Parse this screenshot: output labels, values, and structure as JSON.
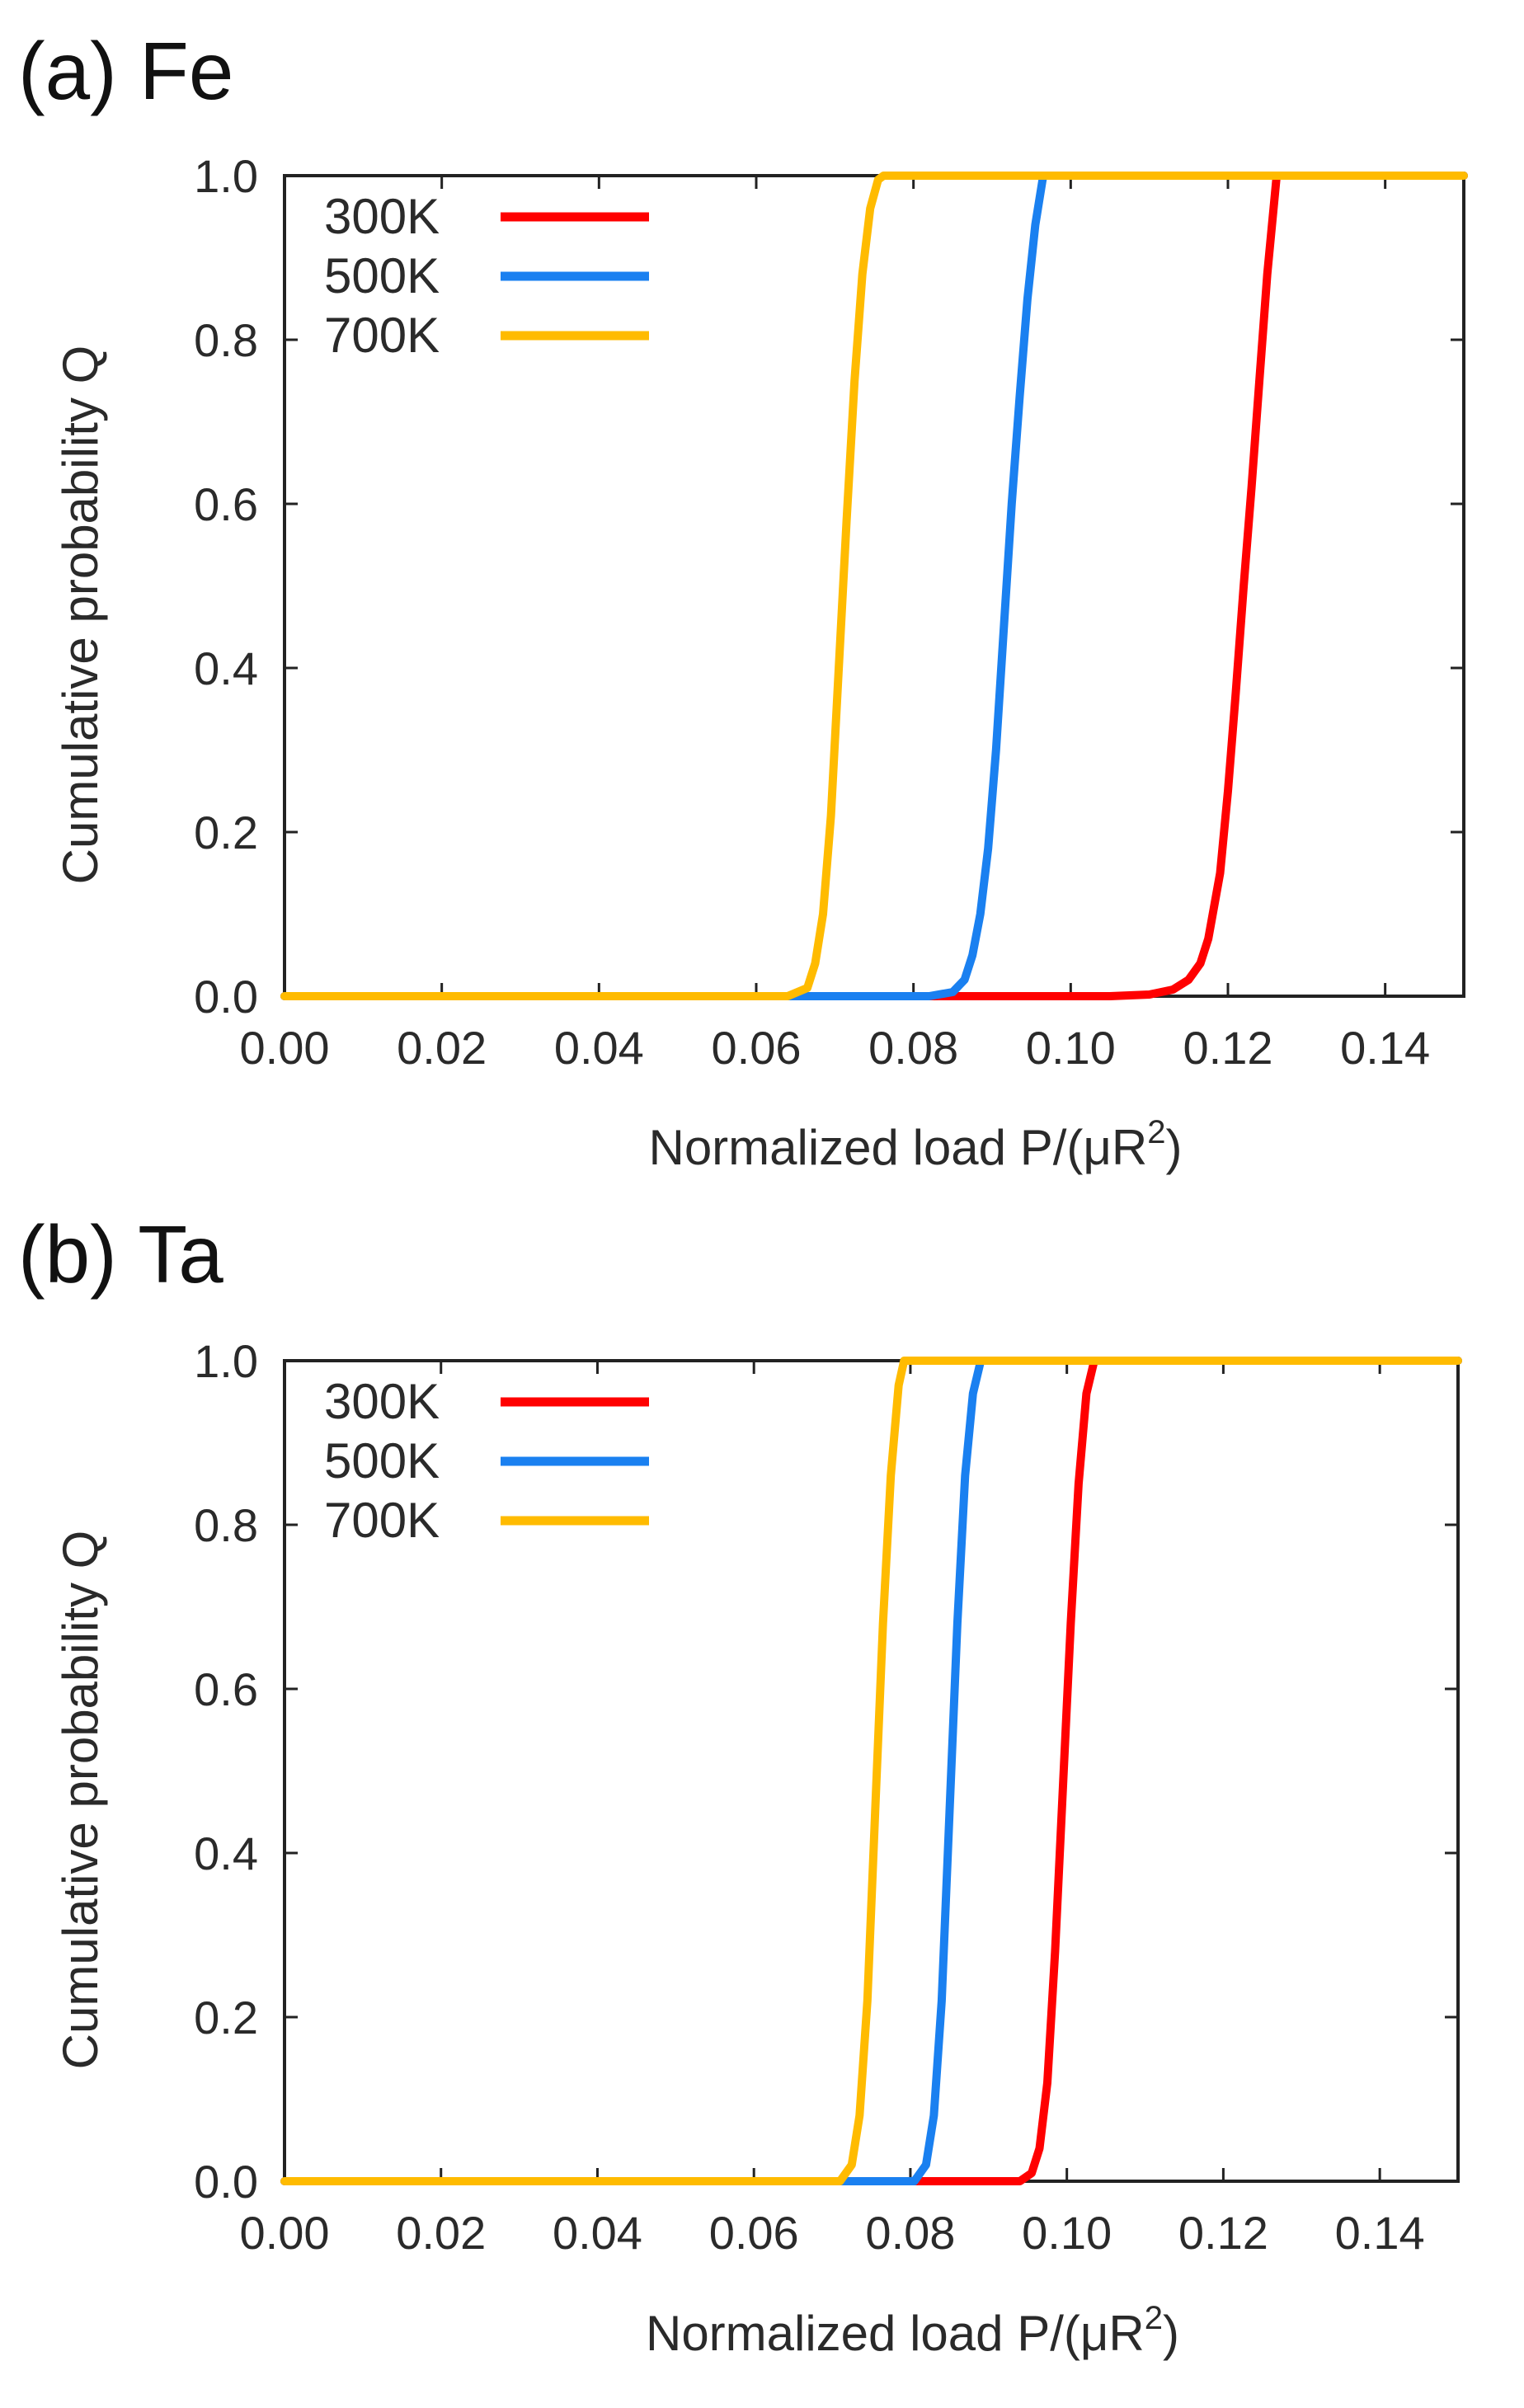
{
  "chart_data": [
    {
      "type": "line",
      "panel_title": "(a) Fe",
      "xlabel_prefix": "Normalized load  P/(μR",
      "xlabel_sup": "2",
      "xlabel_suffix": ")",
      "ylabel": "Cumulative probability  Q",
      "xlim": [
        0.0,
        0.15
      ],
      "ylim": [
        0.0,
        1.0
      ],
      "xticks": [
        "0.00",
        "0.02",
        "0.04",
        "0.06",
        "0.08",
        "0.10",
        "0.12",
        "0.14"
      ],
      "xtick_values": [
        0.0,
        0.02,
        0.04,
        0.06,
        0.08,
        0.1,
        0.12,
        0.14
      ],
      "yticks": [
        "0.0",
        "0.2",
        "0.4",
        "0.6",
        "0.8",
        "1.0"
      ],
      "ytick_values": [
        0.0,
        0.2,
        0.4,
        0.6,
        0.8,
        1.0
      ],
      "legend_position": "top-left",
      "series": [
        {
          "name": "300K",
          "color": "#ff0000",
          "x": [
            0.0,
            0.105,
            0.11,
            0.113,
            0.115,
            0.1165,
            0.1175,
            0.119,
            0.12,
            0.121,
            0.122,
            0.123,
            0.124,
            0.125,
            0.1262,
            0.15
          ],
          "y": [
            0.0,
            0.0,
            0.002,
            0.008,
            0.02,
            0.04,
            0.07,
            0.15,
            0.25,
            0.37,
            0.5,
            0.62,
            0.75,
            0.88,
            1.0,
            1.0
          ]
        },
        {
          "name": "500K",
          "color": "#1a80f0",
          "x": [
            0.0,
            0.082,
            0.085,
            0.0865,
            0.0875,
            0.0885,
            0.0895,
            0.0905,
            0.0915,
            0.0925,
            0.0935,
            0.0945,
            0.0955,
            0.0965,
            0.15
          ],
          "y": [
            0.0,
            0.0,
            0.005,
            0.02,
            0.05,
            0.1,
            0.18,
            0.3,
            0.45,
            0.6,
            0.73,
            0.85,
            0.94,
            1.0,
            1.0
          ]
        },
        {
          "name": "700K",
          "color": "#ffbb00",
          "x": [
            0.0,
            0.064,
            0.0665,
            0.0675,
            0.0685,
            0.0695,
            0.0705,
            0.0715,
            0.0725,
            0.0735,
            0.0745,
            0.0755,
            0.0762,
            0.15
          ],
          "y": [
            0.0,
            0.0,
            0.01,
            0.04,
            0.1,
            0.22,
            0.4,
            0.58,
            0.75,
            0.88,
            0.96,
            0.995,
            1.0,
            1.0
          ]
        }
      ]
    },
    {
      "type": "line",
      "panel_title": "(b) Ta",
      "xlabel_prefix": "Normalized load  P/(μR",
      "xlabel_sup": "2",
      "xlabel_suffix": ")",
      "ylabel": "Cumulative probability  Q",
      "xlim": [
        0.0,
        0.15
      ],
      "ylim": [
        0.0,
        1.0
      ],
      "xticks": [
        "0.00",
        "0.02",
        "0.04",
        "0.06",
        "0.08",
        "0.10",
        "0.12",
        "0.14"
      ],
      "xtick_values": [
        0.0,
        0.02,
        0.04,
        0.06,
        0.08,
        0.1,
        0.12,
        0.14
      ],
      "yticks": [
        "0.0",
        "0.2",
        "0.4",
        "0.6",
        "0.8",
        "1.0"
      ],
      "ytick_values": [
        0.0,
        0.2,
        0.4,
        0.6,
        0.8,
        1.0
      ],
      "legend_position": "top-left",
      "series": [
        {
          "name": "300K",
          "color": "#ff0000",
          "x": [
            0.0,
            0.094,
            0.0955,
            0.0965,
            0.0975,
            0.0985,
            0.0995,
            0.1005,
            0.1015,
            0.1025,
            0.1035,
            0.15
          ],
          "y": [
            0.0,
            0.0,
            0.01,
            0.04,
            0.12,
            0.28,
            0.48,
            0.68,
            0.85,
            0.96,
            1.0,
            1.0
          ]
        },
        {
          "name": "500K",
          "color": "#1a80f0",
          "x": [
            0.0,
            0.0805,
            0.082,
            0.083,
            0.084,
            0.085,
            0.086,
            0.087,
            0.088,
            0.089,
            0.15
          ],
          "y": [
            0.0,
            0.0,
            0.02,
            0.08,
            0.22,
            0.45,
            0.68,
            0.86,
            0.96,
            1.0,
            1.0
          ]
        },
        {
          "name": "700K",
          "color": "#ffbb00",
          "x": [
            0.0,
            0.071,
            0.0725,
            0.0735,
            0.0745,
            0.0755,
            0.0765,
            0.0775,
            0.0785,
            0.0792,
            0.15
          ],
          "y": [
            0.0,
            0.0,
            0.02,
            0.08,
            0.22,
            0.45,
            0.68,
            0.86,
            0.97,
            1.0,
            1.0
          ]
        }
      ]
    }
  ]
}
